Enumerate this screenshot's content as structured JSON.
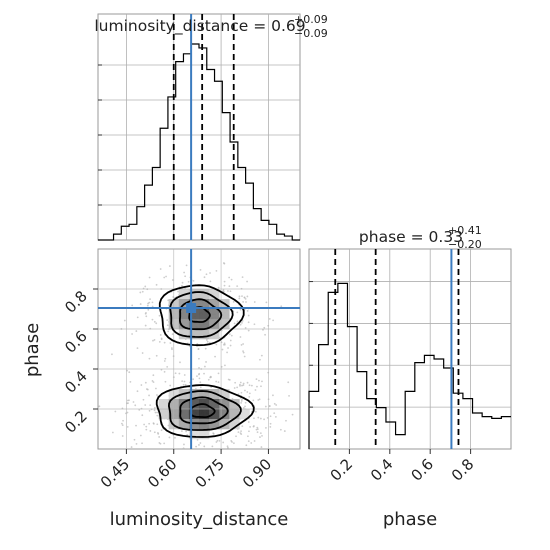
{
  "chart_data": {
    "type": "corner",
    "parameters": [
      "luminosity_distance",
      "phase"
    ],
    "injection": {
      "luminosity_distance": 0.655,
      "phase": 0.705
    },
    "colors": {
      "injection": "#3b7bbf",
      "hist": "#000000",
      "grid": "#b0b0b0"
    },
    "luminosity_distance": {
      "title": {
        "name": "luminosity_distance",
        "median": "0.69",
        "plus": "+0.09",
        "minus": "−0.09"
      },
      "range": [
        0.36,
        1.0
      ],
      "ticks": [
        {
          "v": 0.45,
          "label": "0.45"
        },
        {
          "v": 0.6,
          "label": "0.60"
        },
        {
          "v": 0.75,
          "label": "0.75"
        },
        {
          "v": 0.9,
          "label": "0.90"
        }
      ],
      "quantiles": [
        0.6,
        0.69,
        0.79
      ],
      "hist_values": [
        0,
        0,
        0.03,
        0.07,
        0.08,
        0.17,
        0.28,
        0.37,
        0.57,
        0.73,
        0.91,
        0.95,
        1.0,
        0.98,
        0.87,
        0.81,
        0.65,
        0.5,
        0.37,
        0.29,
        0.16,
        0.1,
        0.08,
        0.03,
        0.02,
        0
      ]
    },
    "phase": {
      "title": {
        "name": "phase",
        "median": "0.33",
        "plus": "+0.41",
        "minus": "−0.20"
      },
      "range": [
        0.0,
        1.0
      ],
      "ticks": [
        {
          "v": 0.2,
          "label": "0.2"
        },
        {
          "v": 0.4,
          "label": "0.4"
        },
        {
          "v": 0.6,
          "label": "0.6"
        },
        {
          "v": 0.8,
          "label": "0.8"
        }
      ],
      "quantiles": [
        0.13,
        0.33,
        0.74
      ],
      "hist_values": [
        0.32,
        0.58,
        0.87,
        0.92,
        0.68,
        0.43,
        0.28,
        0.23,
        0.15,
        0.08,
        0.32,
        0.48,
        0.52,
        0.5,
        0.45,
        0.31,
        0.28,
        0.2,
        0.18,
        0.17,
        0.18
      ]
    },
    "joint": {
      "xlabel": "luminosity_distance",
      "ylabel": "phase",
      "modes": [
        {
          "x": 0.68,
          "y": 0.67,
          "sx": 0.065,
          "sy": 0.075,
          "weight": 0.45
        },
        {
          "x": 0.69,
          "y": 0.19,
          "sx": 0.075,
          "sy": 0.065,
          "weight": 0.55
        }
      ]
    }
  }
}
